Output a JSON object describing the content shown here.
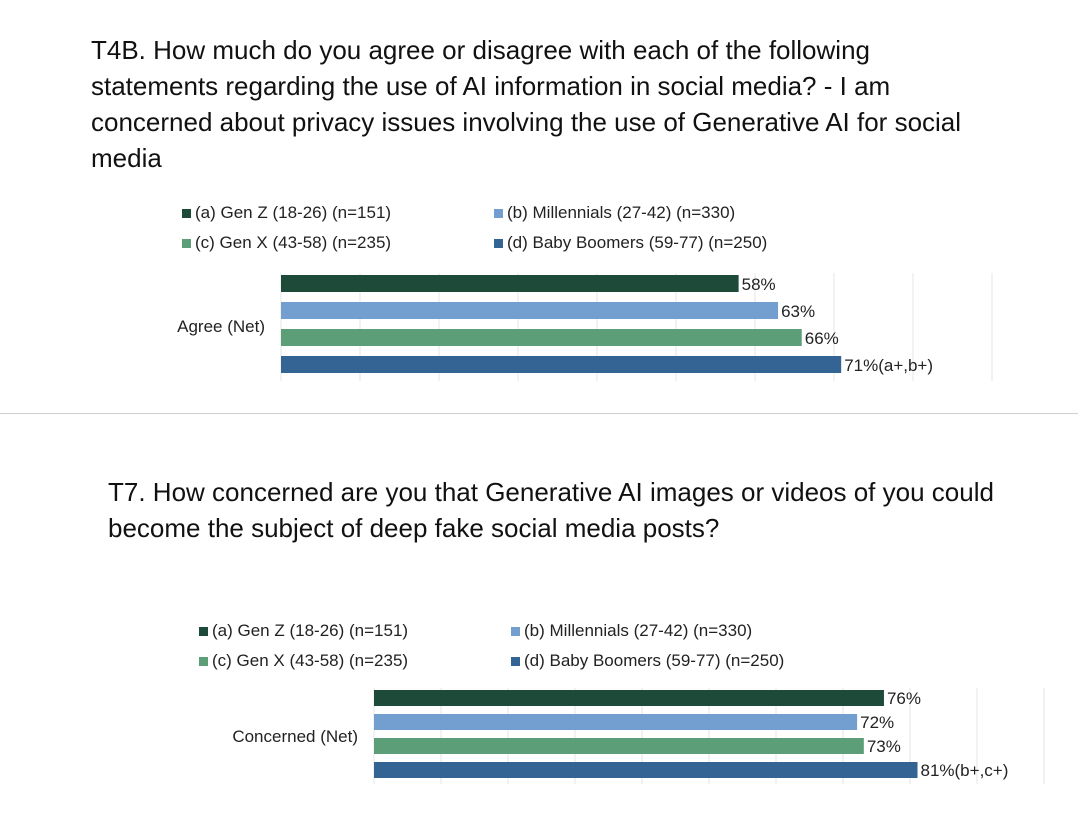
{
  "chart_data": [
    {
      "type": "bar",
      "orientation": "horizontal",
      "title": "T4B. How much do you agree or disagree with each of the following statements regarding the use of AI information in social media? - I am concerned about privacy issues involving the use of Generative AI for social media",
      "categories": [
        "Agree (Net)"
      ],
      "series": [
        {
          "name": "(a) Gen Z (18-26) (n=151)",
          "values": [
            58
          ],
          "labels": [
            "58%"
          ],
          "color": "#1E4A3A"
        },
        {
          "name": "(b) Millennials (27-42) (n=330)",
          "values": [
            63
          ],
          "labels": [
            "63%"
          ],
          "color": "#729FCF"
        },
        {
          "name": "(c) Gen X (43-58) (n=235)",
          "values": [
            66
          ],
          "labels": [
            "66%"
          ],
          "color": "#5B9E78"
        },
        {
          "name": "(d) Baby Boomers (59-77) (n=250)",
          "values": [
            71
          ],
          "labels": [
            "71%(a+,b+)"
          ],
          "color": "#336494"
        }
      ],
      "xlim": [
        0,
        100
      ],
      "grid": true,
      "legend": "top"
    },
    {
      "type": "bar",
      "orientation": "horizontal",
      "title": "T7. How concerned are you that Generative AI images or videos of you could become the subject of deep fake social media posts?",
      "categories": [
        "Concerned (Net)"
      ],
      "series": [
        {
          "name": "(a) Gen Z (18-26) (n=151)",
          "values": [
            76
          ],
          "labels": [
            "76%"
          ],
          "color": "#1E4A3A"
        },
        {
          "name": "(b) Millennials (27-42) (n=330)",
          "values": [
            72
          ],
          "labels": [
            "72%"
          ],
          "color": "#729FCF"
        },
        {
          "name": "(c) Gen X (43-58) (n=235)",
          "values": [
            73
          ],
          "labels": [
            "73%"
          ],
          "color": "#5B9E78"
        },
        {
          "name": "(d) Baby Boomers (59-77) (n=250)",
          "values": [
            81
          ],
          "labels": [
            "81%(b+,c+)"
          ],
          "color": "#336494"
        }
      ],
      "xlim": [
        0,
        100
      ],
      "grid": true,
      "legend": "top"
    }
  ]
}
